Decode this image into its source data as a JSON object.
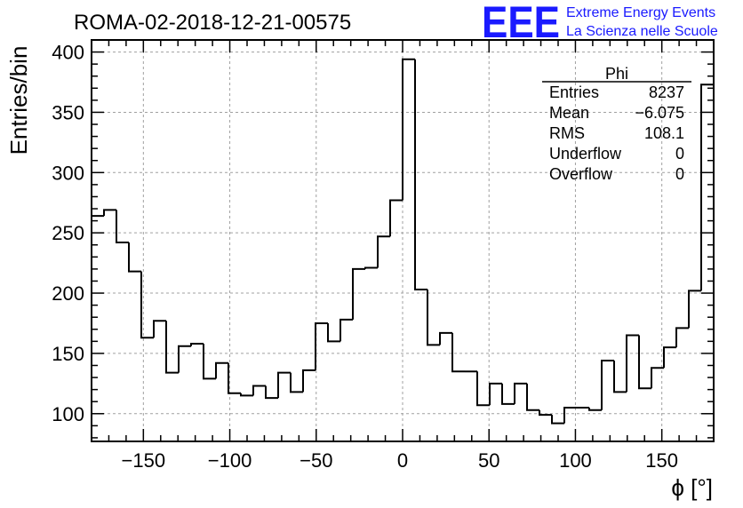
{
  "header": {
    "run_title": "ROMA-02-2018-12-21-00575",
    "logo_mark": "EEE",
    "logo_line1": "Extreme Energy Events",
    "logo_line2": "La Scienza nelle Scuole"
  },
  "stats_box": {
    "name": "Phi",
    "rows": [
      {
        "label": "Entries",
        "value": "8237"
      },
      {
        "label": "Mean",
        "value": "−6.075"
      },
      {
        "label": "RMS",
        "value": "108.1"
      },
      {
        "label": "Underflow",
        "value": "0"
      },
      {
        "label": "Overflow",
        "value": "0"
      }
    ]
  },
  "chart_data": {
    "type": "histogram",
    "title": "ROMA-02-2018-12-21-00575",
    "xlabel": "ϕ [°]",
    "ylabel": "Entries/bin",
    "xlim": [
      -180,
      180
    ],
    "ylim": [
      77,
      410
    ],
    "grid": true,
    "bin_width": 7.2,
    "xticks": [
      -150,
      -100,
      -50,
      0,
      50,
      100,
      150
    ],
    "xtick_labels": [
      "−150",
      "−100",
      "−50",
      "0",
      "50",
      "100",
      "150"
    ],
    "yticks": [
      100,
      150,
      200,
      250,
      300,
      350,
      400
    ],
    "ytick_labels": [
      "100",
      "150",
      "200",
      "250",
      "300",
      "350",
      "400"
    ],
    "values": [
      264,
      269,
      242,
      218,
      163,
      177,
      134,
      156,
      158,
      129,
      142,
      117,
      115,
      123,
      113,
      134,
      118,
      136,
      175,
      160,
      178,
      220,
      221,
      247,
      277,
      394,
      203,
      157,
      167,
      135,
      135,
      107,
      125,
      108,
      125,
      103,
      99,
      92,
      105,
      105,
      103,
      144,
      118,
      165,
      121,
      138,
      155,
      171,
      202,
      373
    ]
  }
}
